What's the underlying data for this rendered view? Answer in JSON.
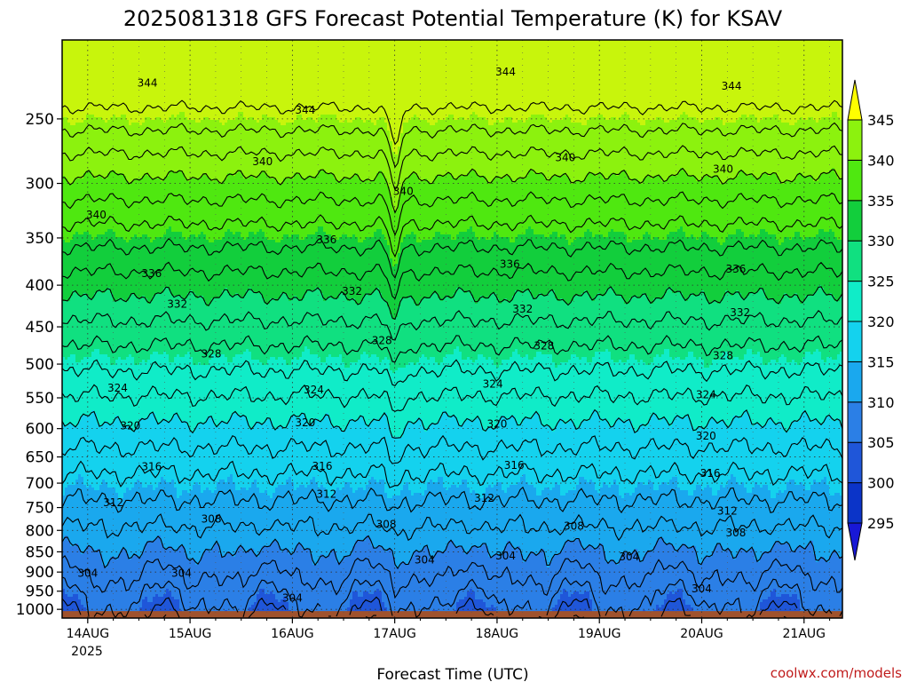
{
  "chart_data": {
    "type": "heatmap",
    "title": "2025081318 GFS Forecast Potential Temperature (K) for KSAV",
    "xlabel": "Forecast Time (UTC)",
    "ylabel": "",
    "credit": "coolwx.com/models",
    "x_ticks": [
      {
        "label": "14AUG",
        "t": 6
      },
      {
        "label": "15AUG",
        "t": 30
      },
      {
        "label": "16AUG",
        "t": 54
      },
      {
        "label": "17AUG",
        "t": 78
      },
      {
        "label": "18AUG",
        "t": 102
      },
      {
        "label": "19AUG",
        "t": 126
      },
      {
        "label": "20AUG",
        "t": 150
      },
      {
        "label": "21AUG",
        "t": 174
      }
    ],
    "x_year_label": "2025",
    "xlim_hours": [
      0,
      183
    ],
    "y_ticks": [
      "250",
      "300",
      "350",
      "400",
      "450",
      "500",
      "550",
      "600",
      "650",
      "700",
      "750",
      "800",
      "850",
      "900",
      "950",
      "1000"
    ],
    "y_values": [
      250,
      300,
      350,
      400,
      450,
      500,
      550,
      600,
      650,
      700,
      750,
      800,
      850,
      900,
      950,
      1000
    ],
    "ylim_hpa": [
      200,
      1025
    ],
    "y_scale": "log",
    "colorbar": {
      "levels": [
        "295",
        "300",
        "305",
        "310",
        "315",
        "320",
        "325",
        "330",
        "335",
        "340",
        "345"
      ],
      "colors": [
        "#1818d6",
        "#0b34c8",
        "#1f56d9",
        "#2b7fe6",
        "#1aa8ee",
        "#14d2ee",
        "#10ecc8",
        "#10e080",
        "#12ce3c",
        "#4fe810",
        "#8cf20e",
        "#c8f50c",
        "#ffff00"
      ]
    },
    "contour_labels": [
      {
        "text": "344",
        "t": 20,
        "p": 226
      },
      {
        "text": "344",
        "t": 57,
        "p": 244
      },
      {
        "text": "344",
        "t": 104,
        "p": 219
      },
      {
        "text": "344",
        "t": 157,
        "p": 228
      },
      {
        "text": "340",
        "t": 47,
        "p": 282
      },
      {
        "text": "340",
        "t": 80,
        "p": 307
      },
      {
        "text": "340",
        "t": 118,
        "p": 279
      },
      {
        "text": "340",
        "t": 155,
        "p": 288
      },
      {
        "text": "340",
        "t": 8,
        "p": 328
      },
      {
        "text": "336",
        "t": 62,
        "p": 352
      },
      {
        "text": "336",
        "t": 105,
        "p": 377
      },
      {
        "text": "336",
        "t": 158,
        "p": 382
      },
      {
        "text": "336",
        "t": 21,
        "p": 387
      },
      {
        "text": "332",
        "t": 27,
        "p": 422
      },
      {
        "text": "332",
        "t": 68,
        "p": 407
      },
      {
        "text": "332",
        "t": 108,
        "p": 428
      },
      {
        "text": "332",
        "t": 159,
        "p": 432
      },
      {
        "text": "328",
        "t": 35,
        "p": 486
      },
      {
        "text": "328",
        "t": 75,
        "p": 468
      },
      {
        "text": "328",
        "t": 113,
        "p": 475
      },
      {
        "text": "328",
        "t": 155,
        "p": 488
      },
      {
        "text": "324",
        "t": 13,
        "p": 535
      },
      {
        "text": "324",
        "t": 59,
        "p": 538
      },
      {
        "text": "324",
        "t": 101,
        "p": 529
      },
      {
        "text": "324",
        "t": 151,
        "p": 545
      },
      {
        "text": "320",
        "t": 16,
        "p": 595
      },
      {
        "text": "320",
        "t": 57,
        "p": 590
      },
      {
        "text": "320",
        "t": 102,
        "p": 592
      },
      {
        "text": "320",
        "t": 151,
        "p": 613
      },
      {
        "text": "316",
        "t": 21,
        "p": 668
      },
      {
        "text": "316",
        "t": 61,
        "p": 667
      },
      {
        "text": "316",
        "t": 106,
        "p": 666
      },
      {
        "text": "316",
        "t": 152,
        "p": 681
      },
      {
        "text": "312",
        "t": 12,
        "p": 740
      },
      {
        "text": "312",
        "t": 62,
        "p": 722
      },
      {
        "text": "312",
        "t": 99,
        "p": 730
      },
      {
        "text": "312",
        "t": 156,
        "p": 757
      },
      {
        "text": "308",
        "t": 35,
        "p": 775
      },
      {
        "text": "308",
        "t": 76,
        "p": 787
      },
      {
        "text": "308",
        "t": 120,
        "p": 790
      },
      {
        "text": "308",
        "t": 158,
        "p": 806
      },
      {
        "text": "304",
        "t": 6,
        "p": 903
      },
      {
        "text": "304",
        "t": 28,
        "p": 903
      },
      {
        "text": "304",
        "t": 85,
        "p": 870
      },
      {
        "text": "304",
        "t": 104,
        "p": 860
      },
      {
        "text": "304",
        "t": 133,
        "p": 862
      },
      {
        "text": "304",
        "t": 54,
        "p": 969
      },
      {
        "text": "304",
        "t": 150,
        "p": 944
      }
    ]
  }
}
